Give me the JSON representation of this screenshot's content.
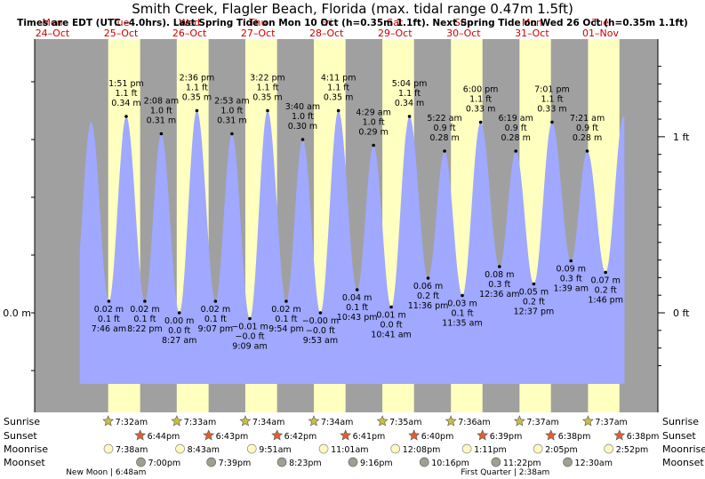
{
  "header": {
    "title": "Smith Creek, Flagler Beach, Florida (max. tidal range 0.47m 1.5ft)",
    "subtitle": "Times are EDT (UTC –4.0hrs). Last Spring Tide on Mon 10 Oct (h=0.35m 1.1ft). Next Spring Tide on Wed 26 Oct (h=0.35m 1.1ft)"
  },
  "colors": {
    "night": "#a0a0a0",
    "day": "#ffffc0",
    "water": "#a0a8ff",
    "day_label": "#cc0000",
    "sun_rise": "#c8c040",
    "sun_set": "#e06030",
    "moon_rise": "#fff8c0",
    "moon_set": "#a0a090"
  },
  "chart_data": {
    "type": "area",
    "title": "Smith Creek, Flagler Beach, Florida (max. tidal range 0.47m 1.5ft)",
    "y_left_label": "0.0 m",
    "y_right_labels": [
      "1 ft",
      "0 ft"
    ],
    "ylim_m": [
      -0.17,
      0.49
    ],
    "xlim_hours": [
      -16,
      210
    ],
    "days": [
      {
        "dow": "Mon",
        "date": "24–Oct"
      },
      {
        "dow": "Tue",
        "date": "25–Oct"
      },
      {
        "dow": "Wed",
        "date": "26–Oct"
      },
      {
        "dow": "Thu",
        "date": "27–Oct"
      },
      {
        "dow": "Fri",
        "date": "28–Oct"
      },
      {
        "dow": "Sat",
        "date": "29–Oct"
      },
      {
        "dow": "Sun",
        "date": "30–Oct"
      },
      {
        "dow": "Mon",
        "date": "31–Oct"
      },
      {
        "dow": "Tue",
        "date": "01–Nov"
      }
    ],
    "tides": [
      {
        "type": "low",
        "hour": 7.77,
        "m": 0.02,
        "m_text": "0.02 m",
        "ft_text": "0.1 ft",
        "time": "7:46 am"
      },
      {
        "type": "high",
        "hour": 13.85,
        "m": 0.34,
        "m_text": "0.34 m",
        "ft_text": "1.1 ft",
        "time": "1:51 pm"
      },
      {
        "type": "low",
        "hour": 20.37,
        "m": 0.02,
        "m_text": "0.02 m",
        "ft_text": "0.1 ft",
        "time": "8:22 pm"
      },
      {
        "type": "high",
        "hour": 26.13,
        "m": 0.31,
        "m_text": "0.31 m",
        "ft_text": "1.0 ft",
        "time": "2:08 am"
      },
      {
        "type": "low",
        "hour": 32.45,
        "m": 0.0,
        "m_text": "0.00 m",
        "ft_text": "0.0 ft",
        "time": "8:27 am"
      },
      {
        "type": "high",
        "hour": 38.6,
        "m": 0.35,
        "m_text": "0.35 m",
        "ft_text": "1.1 ft",
        "time": "2:36 pm"
      },
      {
        "type": "low",
        "hour": 45.12,
        "m": 0.02,
        "m_text": "0.02 m",
        "ft_text": "0.1 ft",
        "time": "9:07 pm"
      },
      {
        "type": "high",
        "hour": 50.88,
        "m": 0.31,
        "m_text": "0.31 m",
        "ft_text": "1.0 ft",
        "time": "2:53 am"
      },
      {
        "type": "low",
        "hour": 57.15,
        "m": -0.01,
        "m_text": "−0.01 m",
        "ft_text": "−0.0 ft",
        "time": "9:09 am"
      },
      {
        "type": "high",
        "hour": 63.37,
        "m": 0.35,
        "m_text": "0.35 m",
        "ft_text": "1.1 ft",
        "time": "3:22 pm"
      },
      {
        "type": "low",
        "hour": 69.9,
        "m": 0.02,
        "m_text": "0.02 m",
        "ft_text": "0.1 ft",
        "time": "9:54 pm"
      },
      {
        "type": "high",
        "hour": 75.67,
        "m": 0.3,
        "m_text": "0.30 m",
        "ft_text": "1.0 ft",
        "time": "3:40 am"
      },
      {
        "type": "low",
        "hour": 81.88,
        "m": -0.0,
        "m_text": "−0.00 m",
        "ft_text": "−0.0 ft",
        "time": "9:53 am"
      },
      {
        "type": "high",
        "hour": 88.18,
        "m": 0.35,
        "m_text": "0.35 m",
        "ft_text": "1.1 ft",
        "time": "4:11 pm"
      },
      {
        "type": "low",
        "hour": 94.72,
        "m": 0.04,
        "m_text": "0.04 m",
        "ft_text": "0.1 ft",
        "time": "10:43 pm"
      },
      {
        "type": "high",
        "hour": 100.48,
        "m": 0.29,
        "m_text": "0.29 m",
        "ft_text": "1.0 ft",
        "time": "4:29 am"
      },
      {
        "type": "low",
        "hour": 106.68,
        "m": 0.01,
        "m_text": "0.01 m",
        "ft_text": "0.0 ft",
        "time": "10:41 am"
      },
      {
        "type": "high",
        "hour": 113.07,
        "m": 0.34,
        "m_text": "0.34 m",
        "ft_text": "1.1 ft",
        "time": "5:04 pm"
      },
      {
        "type": "low",
        "hour": 119.6,
        "m": 0.06,
        "m_text": "0.06 m",
        "ft_text": "0.2 ft",
        "time": "11:36 pm"
      },
      {
        "type": "high",
        "hour": 125.37,
        "m": 0.28,
        "m_text": "0.28 m",
        "ft_text": "0.9 ft",
        "time": "5:22 am"
      },
      {
        "type": "low",
        "hour": 131.58,
        "m": 0.03,
        "m_text": "0.03 m",
        "ft_text": "0.1 ft",
        "time": "11:35 am"
      },
      {
        "type": "high",
        "hour": 138.0,
        "m": 0.33,
        "m_text": "0.33 m",
        "ft_text": "1.1 ft",
        "time": "6:00 pm"
      },
      {
        "type": "low",
        "hour": 144.6,
        "m": 0.08,
        "m_text": "0.08 m",
        "ft_text": "0.3 ft",
        "time": "12:36 am"
      },
      {
        "type": "high",
        "hour": 150.32,
        "m": 0.28,
        "m_text": "0.28 m",
        "ft_text": "0.9 ft",
        "time": "6:19 am"
      },
      {
        "type": "low",
        "hour": 156.62,
        "m": 0.05,
        "m_text": "0.05 m",
        "ft_text": "0.2 ft",
        "time": "12:37 pm"
      },
      {
        "type": "high",
        "hour": 163.02,
        "m": 0.33,
        "m_text": "0.33 m",
        "ft_text": "1.1 ft",
        "time": "7:01 pm"
      },
      {
        "type": "low",
        "hour": 169.65,
        "m": 0.09,
        "m_text": "0.09 m",
        "ft_text": "0.3 ft",
        "time": "1:39 am"
      },
      {
        "type": "high",
        "hour": 175.35,
        "m": 0.28,
        "m_text": "0.28 m",
        "ft_text": "0.9 ft",
        "time": "7:21 am"
      },
      {
        "type": "low",
        "hour": 181.77,
        "m": 0.07,
        "m_text": "0.07 m",
        "ft_text": "0.2 ft",
        "time": "1:46 pm"
      }
    ],
    "sun": [
      {
        "rise": "7:32am",
        "set": "6:44pm",
        "rise_h": 7.53,
        "set_h": 18.73
      },
      {
        "rise": "7:33am",
        "set": "6:43pm",
        "rise_h": 31.55,
        "set_h": 42.72
      },
      {
        "rise": "7:34am",
        "set": "6:42pm",
        "rise_h": 55.57,
        "set_h": 66.7
      },
      {
        "rise": "7:34am",
        "set": "6:41pm",
        "rise_h": 79.57,
        "set_h": 90.68
      },
      {
        "rise": "7:35am",
        "set": "6:40pm",
        "rise_h": 103.58,
        "set_h": 114.67
      },
      {
        "rise": "7:36am",
        "set": "6:39pm",
        "rise_h": 127.6,
        "set_h": 138.65
      },
      {
        "rise": "7:37am",
        "set": "6:38pm",
        "rise_h": 151.62,
        "set_h": 162.63
      },
      {
        "rise": "7:37am",
        "set": "6:38pm",
        "rise_h": 175.62,
        "set_h": 186.63
      }
    ],
    "moonrise": [
      {
        "t": "7:38am",
        "h": 7.63
      },
      {
        "t": "8:43am",
        "h": 32.72
      },
      {
        "t": "9:51am",
        "h": 57.85
      },
      {
        "t": "11:01am",
        "h": 83.02
      },
      {
        "t": "12:08pm",
        "h": 108.13
      },
      {
        "t": "1:11pm",
        "h": 133.18
      },
      {
        "t": "2:05pm",
        "h": 158.08
      },
      {
        "t": "2:52pm",
        "h": 182.87
      }
    ],
    "moonset": [
      {
        "t": "7:00pm",
        "h": 19.0
      },
      {
        "t": "7:39pm",
        "h": 43.65
      },
      {
        "t": "8:23pm",
        "h": 68.38
      },
      {
        "t": "9:16pm",
        "h": 93.27
      },
      {
        "t": "10:16pm",
        "h": 118.27
      },
      {
        "t": "11:22pm",
        "h": 143.37
      },
      {
        "t": "12:30am",
        "h": 168.5
      }
    ],
    "moon_phases": [
      {
        "text": "New Moon | 6:48am",
        "h": 6.8
      },
      {
        "text": "First Quarter | 2:38am",
        "h": 146.63
      }
    ]
  },
  "legend_rows": {
    "sunrise": "Sunrise",
    "sunset": "Sunset",
    "moonrise": "Moonrise",
    "moonset": "Moonset"
  }
}
